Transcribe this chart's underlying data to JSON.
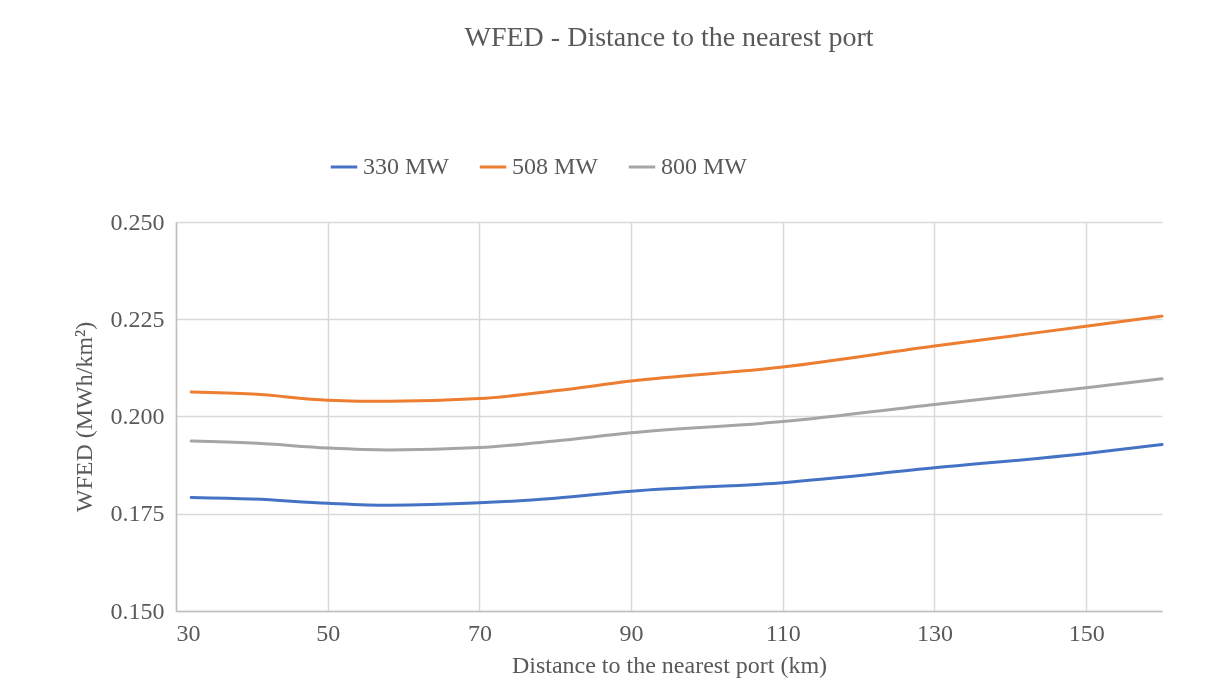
{
  "chart_data": {
    "type": "line",
    "title": "WFED - Distance to the nearest port",
    "xlabel": "Distance to the nearest port (km)",
    "ylabel": "WFED (MWh/km²)",
    "x": [
      32,
      40,
      50,
      58,
      70,
      80,
      90,
      110,
      130,
      150,
      160
    ],
    "series": [
      {
        "name": "330 MW",
        "color": "#4472c4",
        "values": [
          0.1792,
          0.1788,
          0.1777,
          0.1772,
          0.1778,
          0.179,
          0.1808,
          0.183,
          0.1868,
          0.1905,
          0.1928
        ]
      },
      {
        "name": "508 MW",
        "color": "#ed7d31",
        "values": [
          0.2063,
          0.2058,
          0.2042,
          0.2039,
          0.2046,
          0.2066,
          0.2091,
          0.2127,
          0.2181,
          0.2232,
          0.2258
        ]
      },
      {
        "name": "800 MW",
        "color": "#a5a5a5",
        "values": [
          0.1937,
          0.1932,
          0.1919,
          0.1914,
          0.192,
          0.1937,
          0.1958,
          0.1987,
          0.2031,
          0.2074,
          0.2097
        ]
      }
    ],
    "xlim": [
      30,
      160
    ],
    "xticks": [
      30,
      50,
      70,
      90,
      110,
      130,
      150
    ],
    "ylim": [
      0.15,
      0.25
    ],
    "yticks": [
      {
        "value": 0.15,
        "label": "0.150"
      },
      {
        "value": 0.175,
        "label": "0.175"
      },
      {
        "value": 0.2,
        "label": "0.200"
      },
      {
        "value": 0.225,
        "label": "0.225"
      },
      {
        "value": 0.25,
        "label": "0.250"
      }
    ],
    "grid": true,
    "legend": "top"
  }
}
